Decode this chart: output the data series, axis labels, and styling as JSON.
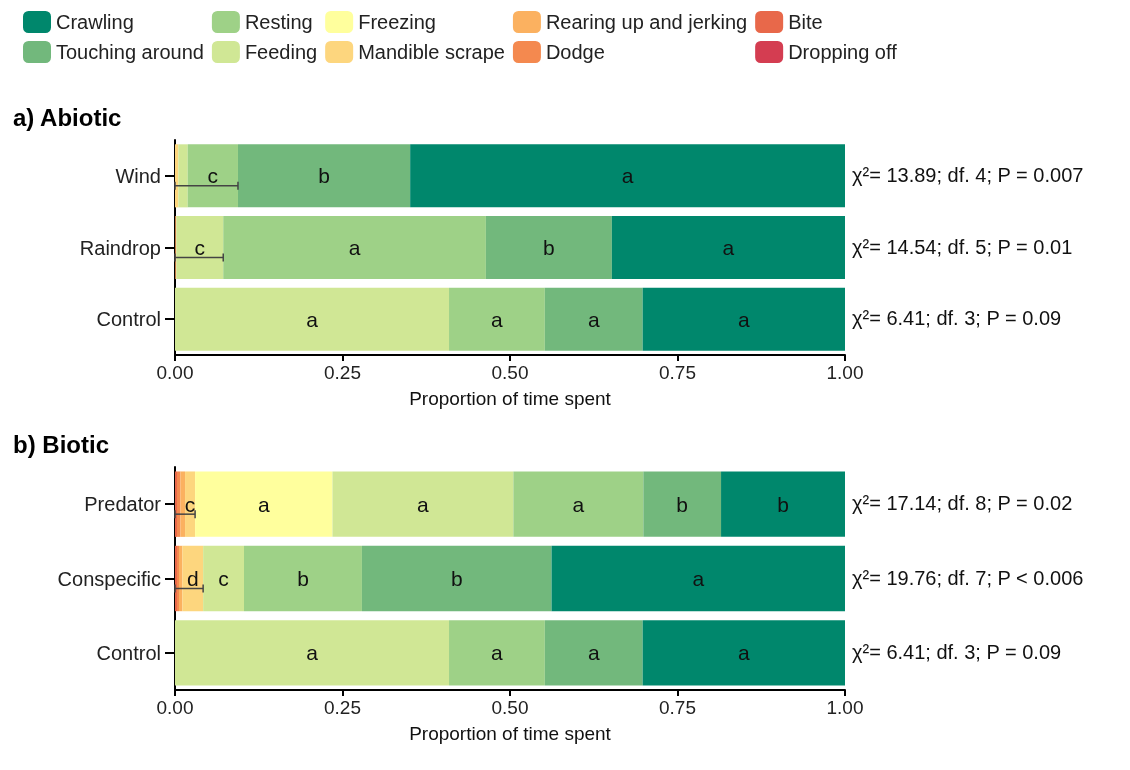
{
  "chart_data": [
    {
      "type": "bar",
      "orientation": "horizontal",
      "stacked": true,
      "title": "a) Abiotic",
      "xlabel": "Proportion of time spent",
      "categories": [
        "Wind",
        "Raindrop",
        "Control"
      ],
      "xlim": [
        0,
        1
      ],
      "xticks": [
        {
          "value": 0,
          "label": "0.00"
        },
        {
          "value": 0.25,
          "label": "0.25"
        },
        {
          "value": 0.5,
          "label": "0.50"
        },
        {
          "value": 0.75,
          "label": "0.75"
        },
        {
          "value": 1,
          "label": "1.00"
        }
      ],
      "legend": "top",
      "grid": false,
      "series": [
        {
          "name": "Dropping off",
          "color": "#d43d51",
          "values": [
            null,
            null,
            null
          ],
          "value_labels": [
            null,
            null,
            null
          ]
        },
        {
          "name": "Bite",
          "color": "#e8684a",
          "values": [
            null,
            null,
            null
          ],
          "value_labels": [
            null,
            null,
            null
          ]
        },
        {
          "name": "Dodge",
          "color": "#f4894f",
          "values": [
            null,
            0.001,
            null
          ],
          "value_labels": [
            null,
            null,
            null
          ]
        },
        {
          "name": "Rearing up and jerking",
          "color": "#fbb160",
          "values": [
            null,
            0.001,
            null
          ],
          "value_labels": [
            null,
            null,
            null
          ]
        },
        {
          "name": "Mandible scrape",
          "color": "#fdd67e",
          "values": [
            0.005,
            null,
            null
          ],
          "value_labels": [
            null,
            null,
            null
          ]
        },
        {
          "name": "Freezing",
          "color": "#ffff9d",
          "values": [
            null,
            null,
            null
          ],
          "value_labels": [
            null,
            null,
            null
          ]
        },
        {
          "name": "Feeding",
          "color": "#d0e795",
          "values": [
            0.014,
            0.07,
            0.409
          ],
          "value_labels": [
            null,
            "c",
            "a"
          ],
          "errors": [
            null,
            [
              0,
              0.072
            ],
            null
          ]
        },
        {
          "name": "Resting",
          "color": "#9ed187",
          "values": [
            0.075,
            0.392,
            0.143
          ],
          "value_labels": [
            "c",
            "a",
            "a"
          ],
          "errors": [
            [
              0,
              0.094
            ],
            null,
            null
          ]
        },
        {
          "name": "Touching around",
          "color": "#72b87c",
          "values": [
            0.257,
            0.188,
            0.146
          ],
          "value_labels": [
            "b",
            "b",
            "a"
          ]
        },
        {
          "name": "Crawling",
          "color": "#00876c",
          "values": [
            0.649,
            0.348,
            0.302
          ],
          "value_labels": [
            "a",
            "a",
            "a"
          ]
        }
      ],
      "annotations": [
        "χ²= 13.89; df. 4; P = 0.007",
        "χ²= 14.54; df. 5; P = 0.01",
        "χ²= 6.41; df. 3; P = 0.09"
      ]
    },
    {
      "type": "bar",
      "orientation": "horizontal",
      "stacked": true,
      "title": "b) Biotic",
      "xlabel": "Proportion of time spent",
      "categories": [
        "Predator",
        "Conspecific",
        "Control"
      ],
      "xlim": [
        0,
        1
      ],
      "xticks": [
        {
          "value": 0,
          "label": "0.00"
        },
        {
          "value": 0.25,
          "label": "0.25"
        },
        {
          "value": 0.5,
          "label": "0.50"
        },
        {
          "value": 0.75,
          "label": "0.75"
        },
        {
          "value": 1,
          "label": "1.00"
        }
      ],
      "grid": false,
      "series": [
        {
          "color": "#e8684a",
          "values": [
            0.003,
            0.003,
            null
          ],
          "value_labels": [
            null,
            null,
            null
          ]
        },
        {
          "color": "#f4894f",
          "values": [
            0.005,
            0.003,
            null
          ],
          "value_labels": [
            null,
            null,
            null
          ]
        },
        {
          "color": "#fbb160",
          "values": [
            0.007,
            0.005,
            null
          ],
          "value_labels": [
            null,
            null,
            null
          ]
        },
        {
          "color": "#fdd67e",
          "values": [
            0.015,
            0.031,
            null
          ],
          "value_labels": [
            "c",
            "d",
            null
          ],
          "errors": [
            [
              0,
              0.03
            ],
            [
              0,
              0.042
            ],
            null
          ]
        },
        {
          "color": "#ffff9d",
          "values": [
            0.205,
            null,
            null
          ],
          "value_labels": [
            "a",
            null,
            null
          ]
        },
        {
          "color": "#d0e795",
          "values": [
            0.27,
            0.061,
            0.409
          ],
          "value_labels": [
            "a",
            "c",
            "a"
          ]
        },
        {
          "color": "#9ed187",
          "values": [
            0.194,
            0.176,
            0.143
          ],
          "value_labels": [
            "a",
            "b",
            "a"
          ]
        },
        {
          "color": "#72b87c",
          "values": [
            0.116,
            0.283,
            0.146
          ],
          "value_labels": [
            "b",
            "b",
            "a"
          ]
        },
        {
          "color": "#00876c",
          "values": [
            0.185,
            0.438,
            0.302
          ],
          "value_labels": [
            "b",
            "a",
            "a"
          ]
        }
      ],
      "annotations": [
        "χ²= 17.14; df. 8; P = 0.02",
        "χ²= 19.76; df. 7; P < 0.006",
        "χ²= 6.41; df. 3; P = 0.09"
      ]
    }
  ]
}
